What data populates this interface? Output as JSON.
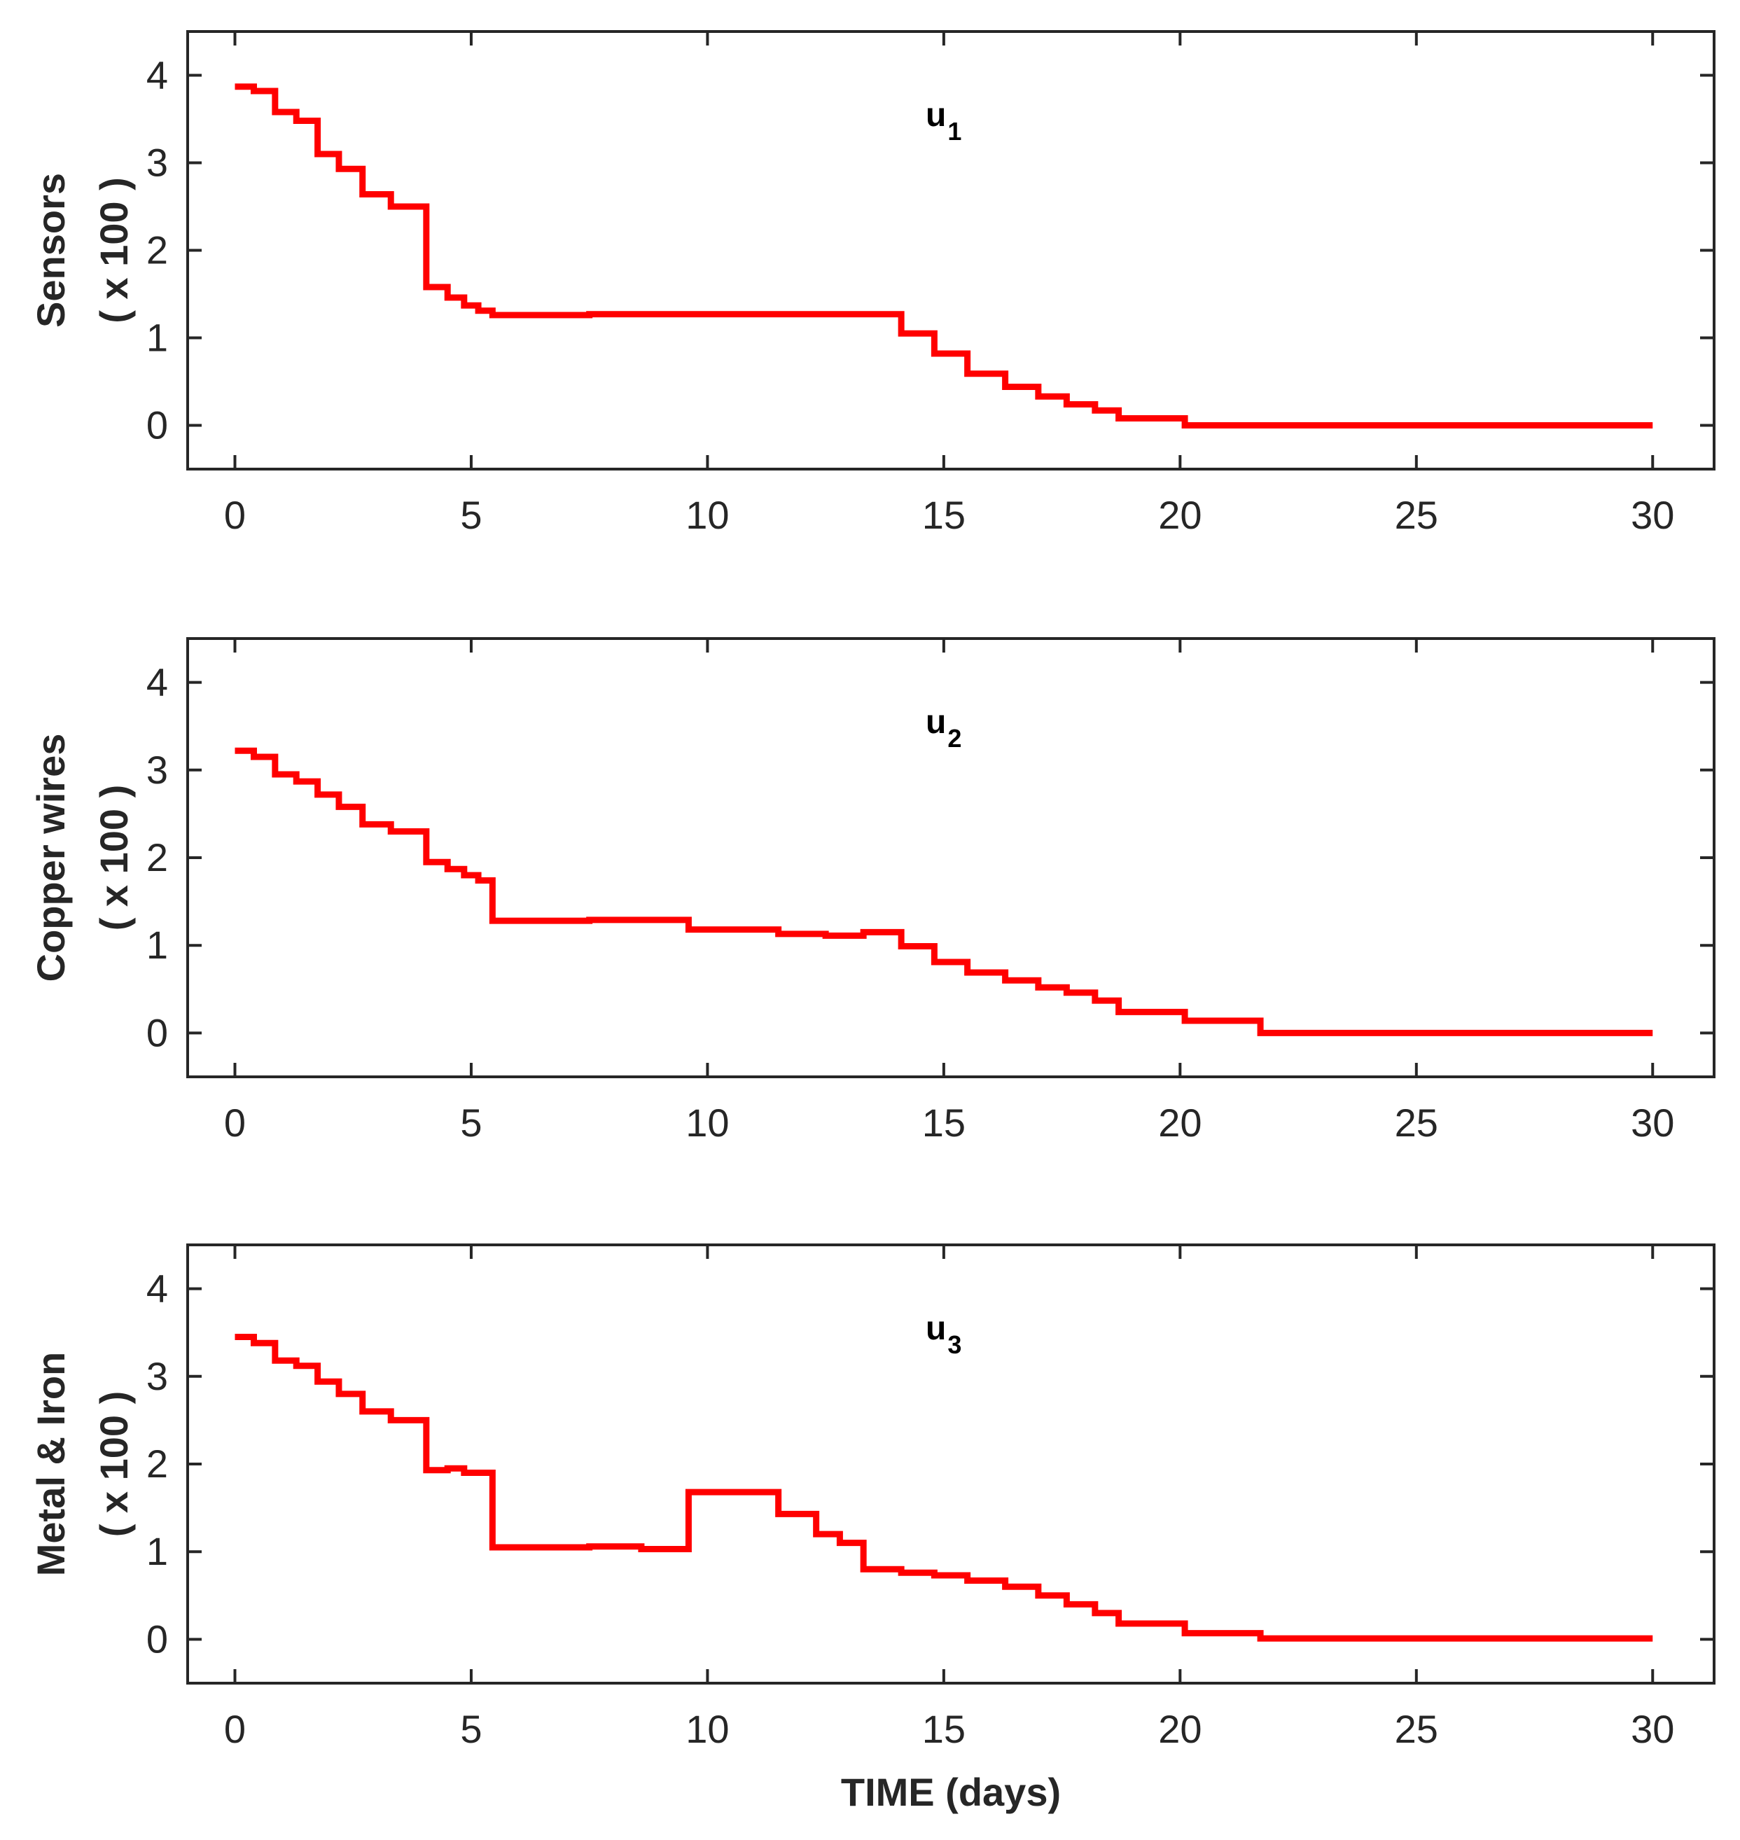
{
  "chart_data": [
    {
      "type": "line",
      "step": true,
      "annotation": {
        "base": "u",
        "sub": "1"
      },
      "ylabel": "Sensors",
      "ylabel_unit": "( x 100 )",
      "xlabel": "",
      "xlim": [
        -1,
        31.3
      ],
      "ylim": [
        -0.5,
        4.5
      ],
      "xticks": [
        0,
        5,
        10,
        15,
        20,
        25,
        30
      ],
      "yticks": [
        0,
        1,
        2,
        3,
        4
      ],
      "color": "#ff0000",
      "series": [
        {
          "name": "u1",
          "x": [
            0,
            0.4,
            0.85,
            1.3,
            1.75,
            2.2,
            2.7,
            3.3,
            4.05,
            4.5,
            4.85,
            5.15,
            5.45,
            7.5,
            14.1,
            14.8,
            15.5,
            16.3,
            17.0,
            17.6,
            18.2,
            18.7,
            20.1,
            30
          ],
          "y": [
            3.87,
            3.82,
            3.58,
            3.48,
            3.1,
            2.93,
            2.64,
            2.5,
            1.58,
            1.46,
            1.37,
            1.31,
            1.26,
            1.27,
            1.05,
            0.82,
            0.59,
            0.44,
            0.33,
            0.24,
            0.17,
            0.08,
            0.0,
            0.0
          ]
        }
      ]
    },
    {
      "type": "line",
      "step": true,
      "annotation": {
        "base": "u",
        "sub": "2"
      },
      "ylabel": "Copper wires",
      "ylabel_unit": "( x 100 )",
      "xlabel": "",
      "xlim": [
        -1,
        31.3
      ],
      "ylim": [
        -0.5,
        4.5
      ],
      "xticks": [
        0,
        5,
        10,
        15,
        20,
        25,
        30
      ],
      "yticks": [
        0,
        1,
        2,
        3,
        4
      ],
      "color": "#ff0000",
      "series": [
        {
          "name": "u2",
          "x": [
            0,
            0.4,
            0.85,
            1.3,
            1.75,
            2.2,
            2.7,
            3.3,
            4.05,
            4.5,
            4.85,
            5.15,
            5.45,
            7.5,
            9.6,
            11.5,
            12.5,
            13.3,
            14.1,
            14.8,
            15.5,
            16.3,
            17.0,
            17.6,
            18.2,
            18.7,
            20.1,
            21.7,
            30
          ],
          "y": [
            3.22,
            3.15,
            2.95,
            2.87,
            2.72,
            2.58,
            2.38,
            2.3,
            1.95,
            1.87,
            1.8,
            1.74,
            1.28,
            1.29,
            1.18,
            1.13,
            1.11,
            1.15,
            0.99,
            0.81,
            0.69,
            0.6,
            0.52,
            0.46,
            0.37,
            0.24,
            0.14,
            0.0,
            0.0
          ]
        }
      ]
    },
    {
      "type": "line",
      "step": true,
      "annotation": {
        "base": "u",
        "sub": "3"
      },
      "ylabel": "Metal & Iron",
      "ylabel_unit": "( x 100 )",
      "xlabel": "TIME (days)",
      "xlim": [
        -1,
        31.3
      ],
      "ylim": [
        -0.5,
        4.5
      ],
      "xticks": [
        0,
        5,
        10,
        15,
        20,
        25,
        30
      ],
      "yticks": [
        0,
        1,
        2,
        3,
        4
      ],
      "color": "#ff0000",
      "series": [
        {
          "name": "u3",
          "x": [
            0,
            0.4,
            0.85,
            1.3,
            1.75,
            2.2,
            2.7,
            3.3,
            4.05,
            4.5,
            4.85,
            5.45,
            7.5,
            8.6,
            9.6,
            11.5,
            12.3,
            12.8,
            13.3,
            14.1,
            14.8,
            15.5,
            16.3,
            17.0,
            17.6,
            18.2,
            18.7,
            20.1,
            21.7,
            30
          ],
          "y": [
            3.45,
            3.38,
            3.18,
            3.12,
            2.94,
            2.8,
            2.6,
            2.5,
            1.93,
            1.95,
            1.9,
            1.05,
            1.06,
            1.03,
            1.68,
            1.43,
            1.2,
            1.1,
            0.8,
            0.76,
            0.73,
            0.67,
            0.6,
            0.5,
            0.4,
            0.3,
            0.18,
            0.07,
            0.01,
            0.01
          ]
        }
      ]
    }
  ]
}
